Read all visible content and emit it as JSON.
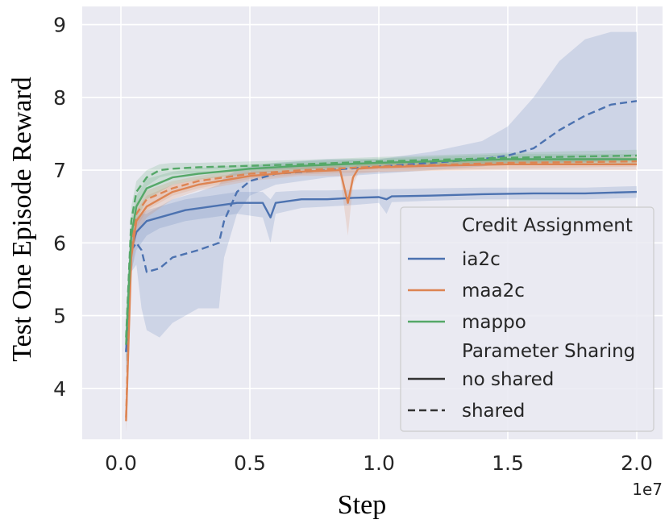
{
  "colors": {
    "plot_bg": "#eaeaf2",
    "grid": "#ffffff",
    "ia2c": "#4c72b0",
    "maa2c": "#dd8452",
    "mappo": "#55a868",
    "legend_bg": "#eaeaf2",
    "legend_border": "#cccccc"
  },
  "chart_data": {
    "type": "line",
    "title": "",
    "xlabel": "Step",
    "ylabel": "Test One Episode Reward",
    "x_exponent_label": "1e7",
    "xlim": [
      -0.15,
      2.1
    ],
    "ylim": [
      3.3,
      9.25
    ],
    "x_ticks": [
      0.0,
      0.5,
      1.0,
      1.5,
      2.0
    ],
    "x_tick_labels": [
      "0.0",
      "0.5",
      "1.0",
      "1.5",
      "2.0"
    ],
    "y_ticks": [
      4,
      5,
      6,
      7,
      8,
      9
    ],
    "y_tick_labels": [
      "4",
      "5",
      "6",
      "7",
      "8",
      "9"
    ],
    "grid": true,
    "legend_position": "lower-right",
    "legend": {
      "hue_title": "Credit Assignment",
      "style_title": "Parameter Sharing",
      "hue_entries": [
        {
          "label": "ia2c",
          "color_key": "ia2c"
        },
        {
          "label": "maa2c",
          "color_key": "maa2c"
        },
        {
          "label": "mappo",
          "color_key": "mappo"
        }
      ],
      "style_entries": [
        {
          "label": "no shared",
          "dash": "solid"
        },
        {
          "label": "shared",
          "dash": "dashed"
        }
      ]
    },
    "series": [
      {
        "name": "ia2c",
        "sharing": "no shared",
        "color_key": "ia2c",
        "dash": "solid",
        "x": [
          0.02,
          0.04,
          0.06,
          0.1,
          0.15,
          0.25,
          0.35,
          0.45,
          0.55,
          0.58,
          0.6,
          0.7,
          0.8,
          0.9,
          1.0,
          1.03,
          1.05,
          1.2,
          1.4,
          1.6,
          1.8,
          2.0
        ],
        "y": [
          4.5,
          5.9,
          6.15,
          6.3,
          6.35,
          6.45,
          6.5,
          6.55,
          6.55,
          6.35,
          6.55,
          6.6,
          6.6,
          6.62,
          6.63,
          6.6,
          6.64,
          6.65,
          6.67,
          6.68,
          6.68,
          6.7
        ],
        "band_lo": [
          4.2,
          5.6,
          5.9,
          6.1,
          6.2,
          6.3,
          6.35,
          6.4,
          6.35,
          6.0,
          6.4,
          6.48,
          6.5,
          6.52,
          6.55,
          6.4,
          6.56,
          6.58,
          6.6,
          6.6,
          6.6,
          6.62
        ],
        "band_hi": [
          4.8,
          6.1,
          6.35,
          6.45,
          6.5,
          6.6,
          6.65,
          6.7,
          6.7,
          6.6,
          6.7,
          6.72,
          6.72,
          6.73,
          6.74,
          6.74,
          6.74,
          6.75,
          6.76,
          6.76,
          6.76,
          6.78
        ]
      },
      {
        "name": "ia2c",
        "sharing": "shared",
        "color_key": "ia2c",
        "dash": "dashed",
        "x": [
          0.02,
          0.04,
          0.06,
          0.08,
          0.1,
          0.15,
          0.2,
          0.3,
          0.38,
          0.4,
          0.45,
          0.5,
          0.6,
          0.8,
          1.0,
          1.2,
          1.4,
          1.5,
          1.6,
          1.7,
          1.8,
          1.9,
          2.0
        ],
        "y": [
          4.5,
          5.9,
          6.0,
          5.9,
          5.6,
          5.65,
          5.8,
          5.9,
          6.0,
          6.3,
          6.7,
          6.85,
          6.95,
          7.0,
          7.05,
          7.1,
          7.15,
          7.2,
          7.3,
          7.55,
          7.75,
          7.9,
          7.95
        ],
        "band_lo": [
          4.2,
          5.6,
          5.7,
          5.1,
          4.8,
          4.7,
          4.9,
          5.1,
          5.1,
          5.8,
          6.4,
          6.65,
          6.8,
          6.9,
          6.95,
          7.0,
          7.05,
          7.1,
          7.1,
          7.1,
          7.1,
          7.15,
          7.2
        ],
        "band_hi": [
          4.8,
          6.1,
          6.3,
          6.4,
          6.4,
          6.5,
          6.6,
          6.7,
          6.8,
          6.9,
          7.0,
          7.05,
          7.1,
          7.15,
          7.15,
          7.25,
          7.4,
          7.6,
          8.0,
          8.5,
          8.8,
          8.9,
          8.9
        ]
      },
      {
        "name": "maa2c",
        "sharing": "no shared",
        "color_key": "maa2c",
        "dash": "solid",
        "x": [
          0.02,
          0.04,
          0.06,
          0.1,
          0.2,
          0.3,
          0.5,
          0.7,
          0.85,
          0.88,
          0.9,
          0.92,
          1.0,
          1.2,
          1.5,
          1.8,
          2.0
        ],
        "y": [
          3.55,
          5.8,
          6.3,
          6.5,
          6.7,
          6.8,
          6.92,
          6.98,
          7.0,
          6.55,
          6.9,
          7.02,
          7.04,
          7.06,
          7.08,
          7.08,
          7.08
        ],
        "band_lo": [
          3.4,
          5.5,
          6.1,
          6.35,
          6.6,
          6.72,
          6.85,
          6.92,
          6.92,
          6.1,
          6.8,
          6.95,
          6.97,
          6.99,
          7.0,
          7.0,
          7.0
        ],
        "band_hi": [
          3.7,
          6.0,
          6.45,
          6.65,
          6.8,
          6.88,
          6.98,
          7.04,
          7.06,
          7.0,
          7.04,
          7.08,
          7.1,
          7.12,
          7.14,
          7.14,
          7.15
        ]
      },
      {
        "name": "maa2c",
        "sharing": "shared",
        "color_key": "maa2c",
        "dash": "dashed",
        "x": [
          0.02,
          0.04,
          0.06,
          0.1,
          0.2,
          0.3,
          0.5,
          0.7,
          1.0,
          1.5,
          2.0
        ],
        "y": [
          3.6,
          6.0,
          6.4,
          6.6,
          6.75,
          6.85,
          6.95,
          7.0,
          7.05,
          7.1,
          7.12
        ],
        "band_lo": [
          3.4,
          5.7,
          6.2,
          6.45,
          6.65,
          6.75,
          6.88,
          6.94,
          6.98,
          7.02,
          7.05
        ],
        "band_hi": [
          3.8,
          6.2,
          6.55,
          6.72,
          6.85,
          6.92,
          7.02,
          7.06,
          7.1,
          7.15,
          7.18
        ]
      },
      {
        "name": "mappo",
        "sharing": "no shared",
        "color_key": "mappo",
        "dash": "solid",
        "x": [
          0.02,
          0.04,
          0.06,
          0.1,
          0.2,
          0.3,
          0.5,
          0.7,
          1.0,
          1.5,
          2.0
        ],
        "y": [
          4.6,
          6.1,
          6.5,
          6.75,
          6.9,
          6.95,
          7.02,
          7.06,
          7.1,
          7.15,
          7.15
        ],
        "band_lo": [
          4.3,
          5.8,
          6.3,
          6.6,
          6.8,
          6.87,
          6.95,
          7.0,
          7.04,
          7.08,
          7.08
        ],
        "band_hi": [
          4.9,
          6.3,
          6.65,
          6.88,
          6.98,
          7.03,
          7.08,
          7.12,
          7.16,
          7.22,
          7.22
        ]
      },
      {
        "name": "mappo",
        "sharing": "shared",
        "color_key": "mappo",
        "dash": "dashed",
        "x": [
          0.02,
          0.04,
          0.06,
          0.1,
          0.15,
          0.2,
          0.3,
          0.5,
          0.7,
          1.0,
          1.5,
          2.0
        ],
        "y": [
          4.7,
          6.3,
          6.7,
          6.9,
          7.0,
          7.02,
          7.04,
          7.06,
          7.08,
          7.12,
          7.17,
          7.2
        ],
        "band_lo": [
          4.4,
          6.0,
          6.5,
          6.78,
          6.9,
          6.94,
          6.96,
          6.99,
          7.02,
          7.06,
          7.1,
          7.12
        ],
        "band_hi": [
          5.0,
          6.5,
          6.85,
          7.0,
          7.08,
          7.1,
          7.1,
          7.12,
          7.14,
          7.18,
          7.24,
          7.28
        ]
      }
    ]
  }
}
